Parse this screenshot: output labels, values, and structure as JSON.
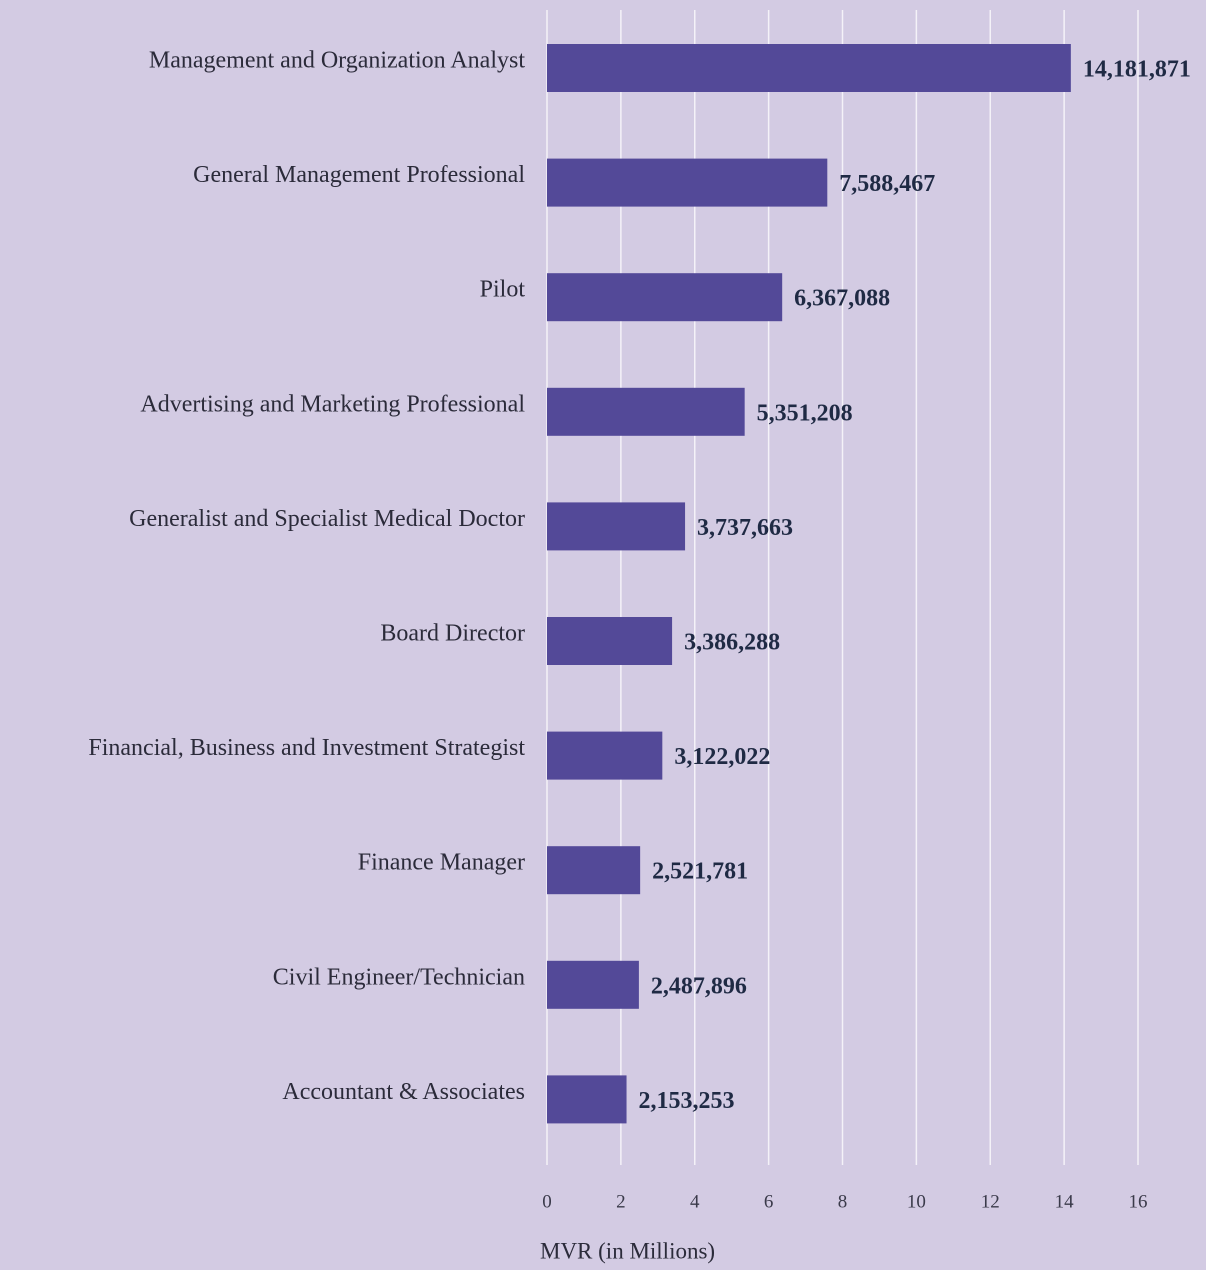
{
  "chart_data": {
    "type": "barh",
    "categories": [
      "Management and Organization Analyst",
      "General Management Professional",
      "Pilot",
      "Advertising and Marketing Professional",
      "Generalist and Specialist Medical Doctor",
      "Board Director",
      "Financial, Business and Investment Strategist",
      "Finance Manager",
      "Civil Engineer/Technician",
      "Accountant & Associates"
    ],
    "values": [
      14.181871,
      7.588467,
      6.367088,
      5.351208,
      3.737663,
      3.386288,
      3.122022,
      2.521781,
      2.487896,
      2.153253
    ],
    "value_labels": [
      "14,181,871",
      "7,588,467",
      "6,367,088",
      "5,351,208",
      "3,737,663",
      "3,386,288",
      "3,122,022",
      "2,521,781",
      "2,487,896",
      "2,153,253"
    ],
    "color": "#534998",
    "xlabel": "MVR (in Millions)",
    "xlim": [
      0,
      16
    ],
    "xticks": [
      0,
      2,
      4,
      6,
      8,
      10,
      12,
      14,
      16
    ],
    "grid": true
  }
}
